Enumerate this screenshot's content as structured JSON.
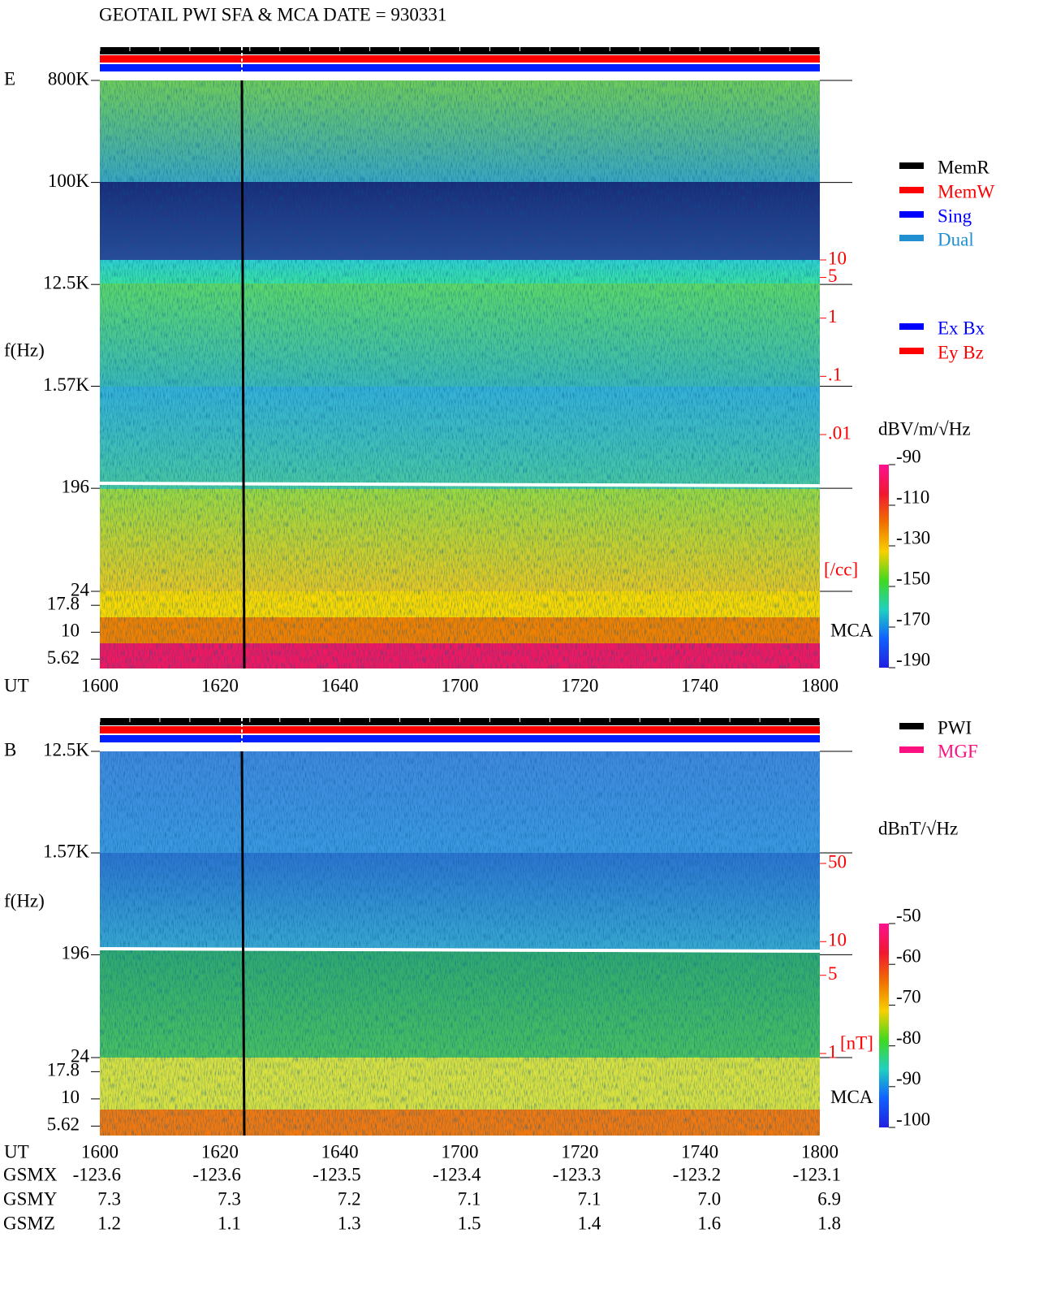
{
  "title": "GEOTAIL  PWI SFA & MCA   DATE = 930331",
  "chart_data": [
    {
      "type": "spectrogram",
      "panel_label": "E",
      "y_label": "f(Hz)",
      "x_label": "UT",
      "log_scale": true,
      "ylim": [
        24,
        800000
      ],
      "yticks": [
        {
          "value": 800000,
          "label": "800K"
        },
        {
          "value": 100000,
          "label": "100K"
        },
        {
          "value": 12500,
          "label": "12.5K"
        },
        {
          "value": 1570,
          "label": "1.57K"
        },
        196,
        24
      ],
      "mca_label": "MCA",
      "mca_ylim": [
        4.6,
        24
      ],
      "mca_ticks": [
        17.8,
        10,
        5.62
      ],
      "categories": [
        "1600",
        "1620",
        "1640",
        "1700",
        "1720",
        "1740",
        "1800"
      ],
      "aux_label": "[/cc]",
      "aux_lim": [
        0.01,
        10
      ],
      "aux_ticks": [
        10,
        5,
        1,
        {
          "value": 0.1,
          "label": ".1"
        },
        {
          "value": 0.01,
          "label": ".01"
        }
      ],
      "colorbar_label": "dBV/m/√Hz",
      "clim": [
        -190,
        -90
      ],
      "colorbar_ticks": [
        -90,
        -110,
        -130,
        -150,
        -170,
        -190
      ],
      "legend": [
        {
          "name": "MemR",
          "color": "#000000"
        },
        {
          "name": "MemW",
          "color": "#ff0000"
        },
        {
          "name": "Sing",
          "color": "#0000ff"
        },
        {
          "name": "Dual",
          "color": "#2090d0"
        }
      ],
      "legend2": [
        {
          "name": "Ex Bx",
          "color": "#0000ff"
        },
        {
          "name": "Ey Bz",
          "color": "#ff0000"
        }
      ]
    },
    {
      "type": "spectrogram",
      "panel_label": "B",
      "y_label": "f(Hz)",
      "x_label": "UT",
      "log_scale": true,
      "ylim": [
        24,
        12500
      ],
      "yticks": [
        {
          "value": 12500,
          "label": "12.5K"
        },
        {
          "value": 1570,
          "label": "1.57K"
        },
        196,
        24
      ],
      "mca_label": "MCA",
      "mca_ylim": [
        4.6,
        24
      ],
      "mca_ticks": [
        17.8,
        10,
        5.62
      ],
      "categories": [
        "1600",
        "1620",
        "1640",
        "1700",
        "1720",
        "1740",
        "1800"
      ],
      "aux_label": "[nT]",
      "aux_lim": [
        1,
        50
      ],
      "aux_ticks": [
        50,
        10,
        5,
        1
      ],
      "colorbar_label": "dBnT/√Hz",
      "clim": [
        -100,
        -50
      ],
      "colorbar_ticks": [
        -50,
        -60,
        -70,
        -80,
        -90,
        -100
      ],
      "legend": [
        {
          "name": "PWI",
          "color": "#000000"
        },
        {
          "name": "MGF",
          "color": "#ff1080"
        }
      ]
    }
  ],
  "orbit": {
    "rows": [
      {
        "label": "GSMX",
        "values": [
          "-123.6",
          "-123.6",
          "-123.5",
          "-123.4",
          "-123.3",
          "-123.2",
          "-123.1"
        ]
      },
      {
        "label": "GSMY",
        "values": [
          "7.3",
          "7.3",
          "7.2",
          "7.1",
          "7.1",
          "7.0",
          "6.9"
        ]
      },
      {
        "label": "GSMZ",
        "values": [
          "1.2",
          "1.1",
          "1.3",
          "1.5",
          "1.4",
          "1.6",
          "1.8"
        ]
      }
    ]
  }
}
